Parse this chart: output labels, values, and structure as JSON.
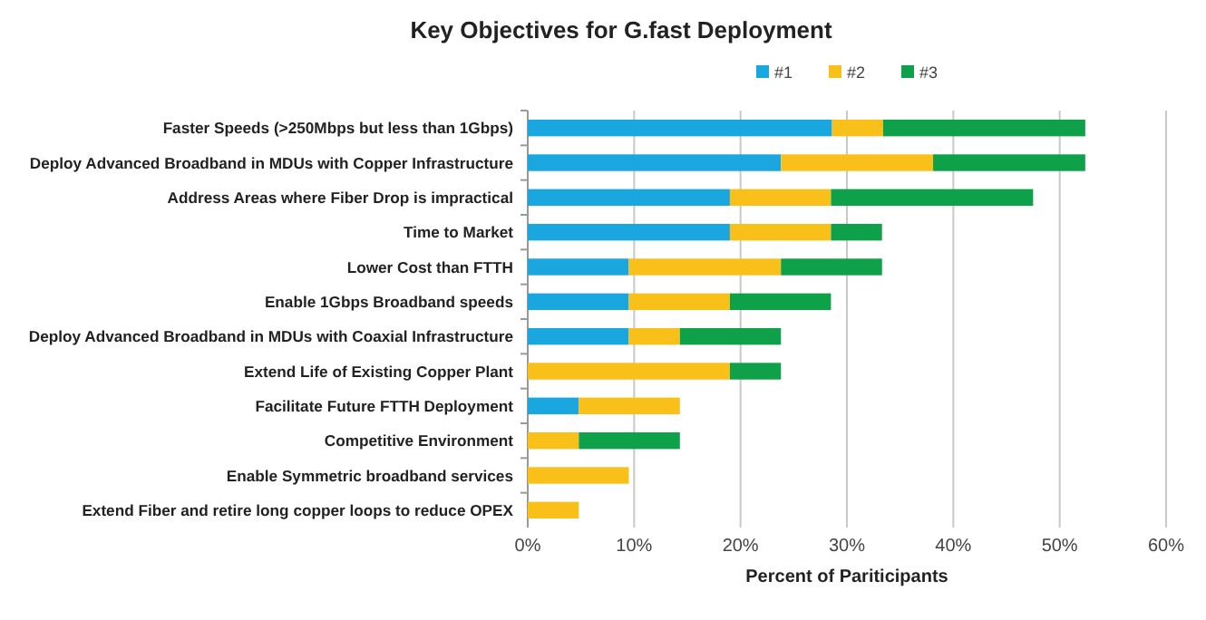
{
  "chart_data": {
    "type": "bar",
    "title": "Key Objectives for G.fast Deployment",
    "orientation": "horizontal",
    "stacked": true,
    "categories": [
      "Faster Speeds (>250Mbps but less than 1Gbps)",
      "Deploy Advanced Broadband in MDUs with Copper Infrastructure",
      "Address Areas where Fiber Drop is impractical",
      "Time to Market",
      "Lower Cost than FTTH",
      "Enable 1Gbps Broadband speeds",
      "Deploy Advanced Broadband in MDUs with Coaxial Infrastructure",
      "Extend Life of Existing Copper Plant",
      "Facilitate Future FTTH Deployment",
      "Competitive Environment",
      "Enable Symmetric broadband services",
      "Extend Fiber and retire long copper loops to reduce OPEX"
    ],
    "series": [
      {
        "name": "#1",
        "color": "#1aa7e0",
        "values": [
          28.6,
          23.8,
          19.0,
          19.0,
          9.5,
          9.5,
          9.5,
          0,
          4.8,
          0,
          0,
          0
        ]
      },
      {
        "name": "#2",
        "color": "#f9c01a",
        "values": [
          4.8,
          14.3,
          9.5,
          9.5,
          14.3,
          9.5,
          4.8,
          19.0,
          9.5,
          4.8,
          9.5,
          4.8
        ]
      },
      {
        "name": "#3",
        "color": "#0fa14a",
        "values": [
          19.0,
          14.3,
          19.0,
          4.8,
          9.5,
          9.5,
          9.5,
          4.8,
          0,
          9.5,
          0,
          0
        ]
      }
    ],
    "xlabel": "Percent of Pariticipants",
    "xlim": [
      0,
      60
    ],
    "xticks": [
      {
        "value": 0,
        "label": "0%"
      },
      {
        "value": 10,
        "label": "10%"
      },
      {
        "value": 20,
        "label": "20%"
      },
      {
        "value": 30,
        "label": "30%"
      },
      {
        "value": 40,
        "label": "40%"
      },
      {
        "value": 50,
        "label": "50%"
      },
      {
        "value": 60,
        "label": "60%"
      }
    ],
    "grid": "x",
    "legend": "top"
  }
}
